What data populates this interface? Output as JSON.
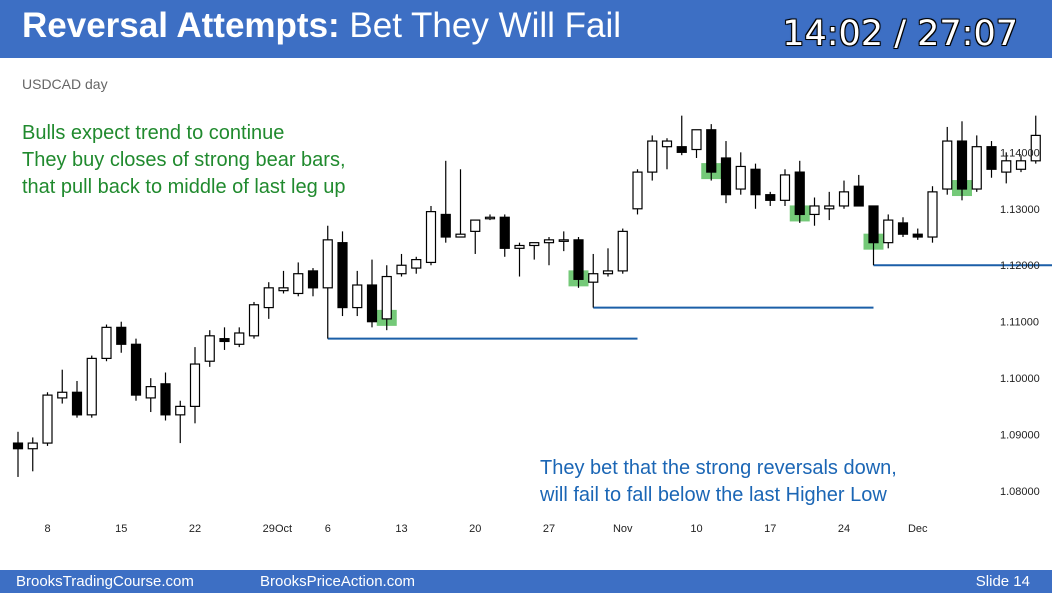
{
  "header": {
    "title_strong": "Reversal Attempts:",
    "title_rest": " Bet They Will Fail",
    "timer": "14:02 / 27:07"
  },
  "symbol_label": "USDCAD day",
  "green_note": [
    "Bulls expect trend to continue",
    "They buy closes of strong bear bars,",
    "that pull back to middle of last leg up"
  ],
  "blue_note": [
    "They bet that the strong reversals down,",
    "will fail to fall below the last Higher Low"
  ],
  "footer": {
    "left": "BrooksTradingCourse.com",
    "center": "BrooksPriceAction.com",
    "right": "Slide  14"
  },
  "colors": {
    "header_bg": "#3d6fc4",
    "green_text": "#208a2e",
    "blue_text": "#1b66b5",
    "highlight": "#5cc060",
    "support_line": "#1b5fa8"
  },
  "chart_data": {
    "type": "candlestick",
    "symbol": "USDCAD",
    "timeframe": "day",
    "ylim": [
      1.077,
      1.1475
    ],
    "y_ticks": [
      1.08,
      1.09,
      1.1,
      1.11,
      1.12,
      1.13,
      1.14
    ],
    "y_tick_labels": [
      "1.08000",
      "1.09000",
      "1.10000",
      "1.11000",
      "1.12000",
      "1.13000",
      "1.14000"
    ],
    "x_ticks": [
      {
        "label": "8",
        "bar": 2
      },
      {
        "label": "15",
        "bar": 7
      },
      {
        "label": "22",
        "bar": 12
      },
      {
        "label": "29",
        "bar": 17
      },
      {
        "label": "Oct",
        "bar": 18
      },
      {
        "label": "6",
        "bar": 21
      },
      {
        "label": "13",
        "bar": 26
      },
      {
        "label": "20",
        "bar": 31
      },
      {
        "label": "27",
        "bar": 36
      },
      {
        "label": "Nov",
        "bar": 41
      },
      {
        "label": "10",
        "bar": 46
      },
      {
        "label": "17",
        "bar": 51
      },
      {
        "label": "24",
        "bar": 56
      },
      {
        "label": "Dec",
        "bar": 61
      }
    ],
    "candles": [
      {
        "o": 1.0885,
        "h": 1.0905,
        "l": 1.0825,
        "c": 1.0875
      },
      {
        "o": 1.0875,
        "h": 1.0895,
        "l": 1.0835,
        "c": 1.0885
      },
      {
        "o": 1.0885,
        "h": 1.0975,
        "l": 1.088,
        "c": 1.097
      },
      {
        "o": 1.0965,
        "h": 1.1015,
        "l": 1.0955,
        "c": 1.0975
      },
      {
        "o": 1.0975,
        "h": 1.0995,
        "l": 1.093,
        "c": 1.0935
      },
      {
        "o": 1.0935,
        "h": 1.104,
        "l": 1.093,
        "c": 1.1035
      },
      {
        "o": 1.1035,
        "h": 1.1095,
        "l": 1.103,
        "c": 1.109
      },
      {
        "o": 1.109,
        "h": 1.11,
        "l": 1.1045,
        "c": 1.106
      },
      {
        "o": 1.106,
        "h": 1.107,
        "l": 1.096,
        "c": 1.097
      },
      {
        "o": 1.0965,
        "h": 1.1,
        "l": 1.094,
        "c": 1.0985
      },
      {
        "o": 1.099,
        "h": 1.101,
        "l": 1.0925,
        "c": 1.0935
      },
      {
        "o": 1.0935,
        "h": 1.096,
        "l": 1.0885,
        "c": 1.095
      },
      {
        "o": 1.095,
        "h": 1.1055,
        "l": 1.092,
        "c": 1.1025
      },
      {
        "o": 1.103,
        "h": 1.1085,
        "l": 1.102,
        "c": 1.1075
      },
      {
        "o": 1.107,
        "h": 1.109,
        "l": 1.105,
        "c": 1.1065
      },
      {
        "o": 1.106,
        "h": 1.109,
        "l": 1.1055,
        "c": 1.108
      },
      {
        "o": 1.1075,
        "h": 1.1135,
        "l": 1.107,
        "c": 1.113
      },
      {
        "o": 1.1125,
        "h": 1.117,
        "l": 1.1105,
        "c": 1.116
      },
      {
        "o": 1.1155,
        "h": 1.119,
        "l": 1.115,
        "c": 1.116
      },
      {
        "o": 1.115,
        "h": 1.1205,
        "l": 1.1145,
        "c": 1.1185
      },
      {
        "o": 1.119,
        "h": 1.1195,
        "l": 1.1145,
        "c": 1.116
      },
      {
        "o": 1.116,
        "h": 1.127,
        "l": 1.107,
        "c": 1.1245
      },
      {
        "o": 1.124,
        "h": 1.126,
        "l": 1.111,
        "c": 1.1125
      },
      {
        "o": 1.1125,
        "h": 1.119,
        "l": 1.111,
        "c": 1.1165
      },
      {
        "o": 1.1165,
        "h": 1.121,
        "l": 1.109,
        "c": 1.11
      },
      {
        "o": 1.1105,
        "h": 1.12,
        "l": 1.1085,
        "c": 1.118
      },
      {
        "o": 1.1185,
        "h": 1.122,
        "l": 1.118,
        "c": 1.12
      },
      {
        "o": 1.1195,
        "h": 1.1215,
        "l": 1.1185,
        "c": 1.121
      },
      {
        "o": 1.1205,
        "h": 1.1305,
        "l": 1.12,
        "c": 1.1295
      },
      {
        "o": 1.129,
        "h": 1.1385,
        "l": 1.124,
        "c": 1.125
      },
      {
        "o": 1.125,
        "h": 1.137,
        "l": 1.125,
        "c": 1.1255
      },
      {
        "o": 1.126,
        "h": 1.128,
        "l": 1.122,
        "c": 1.128
      },
      {
        "o": 1.1285,
        "h": 1.129,
        "l": 1.128,
        "c": 1.1285
      },
      {
        "o": 1.1285,
        "h": 1.129,
        "l": 1.1215,
        "c": 1.123
      },
      {
        "o": 1.123,
        "h": 1.124,
        "l": 1.118,
        "c": 1.1235
      },
      {
        "o": 1.1235,
        "h": 1.124,
        "l": 1.121,
        "c": 1.124
      },
      {
        "o": 1.124,
        "h": 1.125,
        "l": 1.12,
        "c": 1.1245
      },
      {
        "o": 1.1245,
        "h": 1.126,
        "l": 1.1225,
        "c": 1.1245
      },
      {
        "o": 1.1245,
        "h": 1.125,
        "l": 1.116,
        "c": 1.1175
      },
      {
        "o": 1.117,
        "h": 1.122,
        "l": 1.1125,
        "c": 1.1185
      },
      {
        "o": 1.1185,
        "h": 1.123,
        "l": 1.118,
        "c": 1.119
      },
      {
        "o": 1.119,
        "h": 1.1265,
        "l": 1.1185,
        "c": 1.126
      },
      {
        "o": 1.13,
        "h": 1.137,
        "l": 1.129,
        "c": 1.1365
      },
      {
        "o": 1.1365,
        "h": 1.143,
        "l": 1.135,
        "c": 1.142
      },
      {
        "o": 1.141,
        "h": 1.1425,
        "l": 1.137,
        "c": 1.142
      },
      {
        "o": 1.141,
        "h": 1.1465,
        "l": 1.1395,
        "c": 1.14
      },
      {
        "o": 1.1405,
        "h": 1.144,
        "l": 1.139,
        "c": 1.144
      },
      {
        "o": 1.144,
        "h": 1.145,
        "l": 1.135,
        "c": 1.1365
      },
      {
        "o": 1.139,
        "h": 1.142,
        "l": 1.131,
        "c": 1.1325
      },
      {
        "o": 1.1335,
        "h": 1.14,
        "l": 1.1325,
        "c": 1.1375
      },
      {
        "o": 1.137,
        "h": 1.138,
        "l": 1.13,
        "c": 1.1325
      },
      {
        "o": 1.1325,
        "h": 1.133,
        "l": 1.1305,
        "c": 1.1315
      },
      {
        "o": 1.1315,
        "h": 1.137,
        "l": 1.1305,
        "c": 1.136
      },
      {
        "o": 1.1365,
        "h": 1.1385,
        "l": 1.1275,
        "c": 1.129
      },
      {
        "o": 1.129,
        "h": 1.132,
        "l": 1.127,
        "c": 1.1305
      },
      {
        "o": 1.13,
        "h": 1.133,
        "l": 1.128,
        "c": 1.1305
      },
      {
        "o": 1.1305,
        "h": 1.135,
        "l": 1.13,
        "c": 1.133
      },
      {
        "o": 1.134,
        "h": 1.136,
        "l": 1.1305,
        "c": 1.1305
      },
      {
        "o": 1.1305,
        "h": 1.1305,
        "l": 1.12,
        "c": 1.124
      },
      {
        "o": 1.124,
        "h": 1.129,
        "l": 1.123,
        "c": 1.128
      },
      {
        "o": 1.1275,
        "h": 1.1285,
        "l": 1.125,
        "c": 1.1255
      },
      {
        "o": 1.1255,
        "h": 1.1265,
        "l": 1.1245,
        "c": 1.125
      },
      {
        "o": 1.125,
        "h": 1.134,
        "l": 1.124,
        "c": 1.133
      },
      {
        "o": 1.1335,
        "h": 1.1445,
        "l": 1.1325,
        "c": 1.142
      },
      {
        "o": 1.142,
        "h": 1.1455,
        "l": 1.1315,
        "c": 1.1335
      },
      {
        "o": 1.1335,
        "h": 1.143,
        "l": 1.133,
        "c": 1.141
      },
      {
        "o": 1.141,
        "h": 1.142,
        "l": 1.1355,
        "c": 1.137
      },
      {
        "o": 1.1365,
        "h": 1.14,
        "l": 1.1345,
        "c": 1.1385
      },
      {
        "o": 1.137,
        "h": 1.1395,
        "l": 1.1365,
        "c": 1.1385
      },
      {
        "o": 1.1385,
        "h": 1.1465,
        "l": 1.138,
        "c": 1.143
      }
    ],
    "highlighted_bars": [
      25,
      38,
      47,
      53,
      58,
      64
    ],
    "support_lines": [
      {
        "price": 1.107,
        "from_bar": 21,
        "to_bar": 42
      },
      {
        "price": 1.1125,
        "from_bar": 39,
        "to_bar": 58
      },
      {
        "price": 1.12,
        "from_bar": 58,
        "to_bar": 71
      }
    ],
    "grid": false
  }
}
